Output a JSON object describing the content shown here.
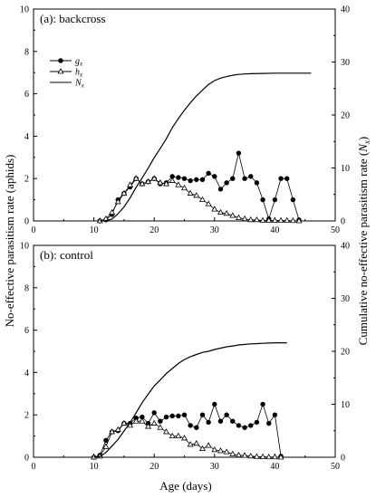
{
  "figure": {
    "xlabel": "Age (days)",
    "ylabel_left": "No-effective parasitism rate (aphids)",
    "ylabel_right_main": "Cumulative no-effective parasitism rate (",
    "ylabel_right_var": "N",
    "ylabel_right_sub": "x",
    "ylabel_right_end": ")",
    "legend": [
      {
        "key": "g",
        "sub": "x",
        "marker": "filled-circle"
      },
      {
        "key": "h",
        "sub": "x",
        "marker": "open-triangle"
      },
      {
        "key": "N",
        "sub": "x",
        "marker": "line"
      }
    ]
  },
  "chart_data": [
    {
      "type": "line",
      "title": "(a): backcross",
      "xlabel": "Age (days)",
      "ylabel": "No-effective parasitism rate (aphids)",
      "ylabel_right": "Cumulative no-effective parasitism rate (Nx)",
      "xlim": [
        0,
        50
      ],
      "ylim": [
        0,
        10
      ],
      "ylim_right": [
        0,
        40
      ],
      "xticks": [
        0,
        10,
        20,
        30,
        40,
        50
      ],
      "yticks": [
        0,
        2,
        4,
        6,
        8,
        10
      ],
      "yticks_right": [
        0,
        10,
        20,
        30,
        40
      ],
      "legend_position": "top-left",
      "series": [
        {
          "name": "gx",
          "axis": "left",
          "marker": "filled-circle",
          "x": [
            11,
            12,
            13,
            14,
            15,
            16,
            17,
            18,
            19,
            20,
            21,
            22,
            23,
            24,
            25,
            26,
            27,
            28,
            29,
            30,
            31,
            32,
            33,
            34,
            35,
            36,
            37,
            38,
            39,
            40,
            41,
            42,
            43,
            44
          ],
          "y": [
            0,
            0.05,
            0.3,
            1.0,
            1.3,
            1.6,
            2.0,
            1.75,
            1.85,
            2.0,
            1.75,
            1.8,
            2.1,
            2.05,
            2.0,
            1.9,
            1.95,
            1.95,
            2.25,
            2.1,
            1.5,
            1.8,
            2.0,
            3.2,
            2.0,
            2.1,
            1.8,
            1.0,
            0.1,
            1.0,
            2.0,
            2.0,
            1.0,
            0.05
          ]
        },
        {
          "name": "hx",
          "axis": "left",
          "marker": "open-triangle",
          "x": [
            11,
            12,
            13,
            14,
            15,
            16,
            17,
            18,
            19,
            20,
            21,
            22,
            23,
            24,
            25,
            26,
            27,
            28,
            29,
            30,
            31,
            32,
            33,
            34,
            35,
            36,
            37,
            38,
            39,
            40,
            41,
            42,
            43,
            44
          ],
          "y": [
            0,
            0.1,
            0.4,
            0.9,
            1.3,
            1.7,
            2.0,
            1.75,
            1.85,
            2.0,
            1.8,
            1.75,
            1.9,
            1.7,
            1.55,
            1.3,
            1.2,
            1.0,
            0.8,
            0.55,
            0.4,
            0.35,
            0.25,
            0.15,
            0.1,
            0.05,
            0.05,
            0.02,
            0.02,
            0.02,
            0.02,
            0.02,
            0.01,
            0
          ]
        },
        {
          "name": "Nx",
          "axis": "right",
          "marker": "none",
          "x": [
            11,
            12,
            13,
            14,
            15,
            16,
            17,
            18,
            19,
            20,
            21,
            22,
            23,
            24,
            25,
            26,
            27,
            28,
            29,
            30,
            31,
            32,
            33,
            34,
            35,
            36,
            38,
            40,
            42,
            44,
            46
          ],
          "y": [
            0,
            0.05,
            0.35,
            1.35,
            2.65,
            4.35,
            6.35,
            8.1,
            9.95,
            11.95,
            13.7,
            15.5,
            17.6,
            19.3,
            20.9,
            22.3,
            23.6,
            24.7,
            25.75,
            26.5,
            26.95,
            27.25,
            27.5,
            27.65,
            27.75,
            27.8,
            27.85,
            27.9,
            27.9,
            27.9,
            27.9
          ]
        }
      ]
    },
    {
      "type": "line",
      "title": "(b): control",
      "xlabel": "Age (days)",
      "ylabel": "No-effective parasitism rate (aphids)",
      "ylabel_right": "Cumulative no-effective parasitism rate (Nx)",
      "xlim": [
        0,
        50
      ],
      "ylim": [
        0,
        10
      ],
      "ylim_right": [
        0,
        40
      ],
      "xticks": [
        0,
        10,
        20,
        30,
        40,
        50
      ],
      "yticks": [
        0,
        2,
        4,
        6,
        8,
        10
      ],
      "yticks_right": [
        0,
        10,
        20,
        30,
        40
      ],
      "series": [
        {
          "name": "gx",
          "axis": "left",
          "marker": "filled-circle",
          "x": [
            10,
            11,
            12,
            13,
            14,
            15,
            16,
            17,
            18,
            19,
            20,
            21,
            22,
            23,
            24,
            25,
            26,
            27,
            28,
            29,
            30,
            31,
            32,
            33,
            34,
            35,
            36,
            37,
            38,
            39,
            40,
            41
          ],
          "y": [
            0,
            0.1,
            0.8,
            1.2,
            1.25,
            1.6,
            1.6,
            1.85,
            1.9,
            1.6,
            2.1,
            1.7,
            1.9,
            1.95,
            1.95,
            2.0,
            1.5,
            1.4,
            2.0,
            1.65,
            2.5,
            1.7,
            2.0,
            1.7,
            1.5,
            1.4,
            1.5,
            1.65,
            2.5,
            1.6,
            2.0,
            0.05
          ]
        },
        {
          "name": "hx",
          "axis": "left",
          "marker": "open-triangle",
          "x": [
            10,
            11,
            12,
            13,
            14,
            15,
            16,
            17,
            18,
            19,
            20,
            21,
            22,
            23,
            24,
            25,
            26,
            27,
            28,
            29,
            30,
            31,
            32,
            33,
            34,
            35,
            36,
            37,
            38,
            39,
            40,
            41
          ],
          "y": [
            0,
            0.05,
            0.5,
            1.2,
            1.3,
            1.6,
            1.5,
            1.7,
            1.7,
            1.45,
            1.6,
            1.4,
            1.2,
            1.0,
            1.0,
            0.9,
            0.6,
            0.65,
            0.4,
            0.55,
            0.35,
            0.3,
            0.25,
            0.15,
            0.1,
            0.08,
            0.05,
            0.03,
            0.02,
            0.01,
            0.01,
            0
          ]
        },
        {
          "name": "Nx",
          "axis": "right",
          "marker": "none",
          "x": [
            10,
            11,
            12,
            13,
            14,
            15,
            16,
            17,
            18,
            19,
            20,
            21,
            22,
            23,
            24,
            25,
            26,
            27,
            28,
            29,
            30,
            31,
            32,
            33,
            34,
            35,
            36,
            37,
            38,
            39,
            40,
            41,
            42
          ],
          "y": [
            0,
            0.1,
            0.9,
            2.1,
            3.35,
            4.95,
            6.55,
            8.4,
            10.3,
            11.9,
            13.45,
            14.6,
            15.8,
            16.75,
            17.7,
            18.45,
            19.0,
            19.4,
            19.8,
            20.0,
            20.35,
            20.6,
            20.85,
            21.0,
            21.2,
            21.3,
            21.4,
            21.45,
            21.5,
            21.55,
            21.6,
            21.6,
            21.6
          ]
        }
      ]
    }
  ]
}
